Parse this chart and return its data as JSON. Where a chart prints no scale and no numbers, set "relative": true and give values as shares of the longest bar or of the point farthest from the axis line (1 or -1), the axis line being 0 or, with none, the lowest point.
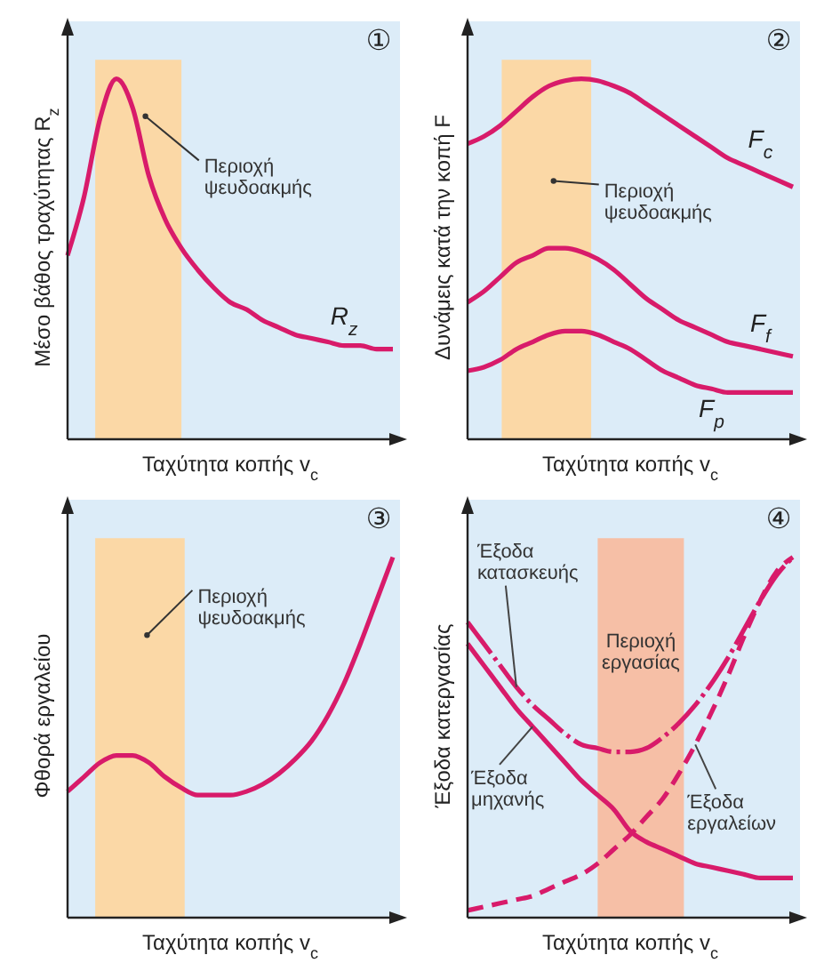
{
  "chart_data": [
    {
      "type": "line",
      "relative": true,
      "categories": [
        null,
        null,
        null,
        null,
        null,
        null,
        null,
        null,
        null,
        null,
        null,
        null,
        null,
        null,
        null,
        null,
        null,
        null,
        null,
        null,
        null
      ],
      "xlabel": "Ταχύτητα κοπής v$_{c}$",
      "ylabel": "Μέσο βάθος τραχύτητας R$_{z}$",
      "annotations": [
        "①",
        "Περιοχή ψευδοακμής"
      ],
      "series": [
        {
          "name": "R$_{z}$",
          "color": "#d81b6a",
          "values": [
            0.51,
            0.67,
            0.89,
            1.0,
            0.92,
            0.73,
            0.61,
            0.53,
            0.47,
            0.42,
            0.38,
            0.36,
            0.33,
            0.31,
            0.29,
            0.28,
            0.27,
            0.26,
            0.26,
            0.25,
            0.25
          ]
        }
      ]
    },
    {
      "type": "line",
      "relative": true,
      "categories": [
        null,
        null,
        null,
        null,
        null,
        null,
        null,
        null,
        null,
        null,
        null,
        null,
        null,
        null,
        null,
        null,
        null,
        null,
        null,
        null,
        null
      ],
      "xlabel": "Ταχύτητα κοπής v$_{c}$",
      "ylabel": "Δυνάμεις κατά την κοπή F",
      "annotations": [
        "②",
        "Περιοχή ψευδοακμής"
      ],
      "series": [
        {
          "name": "F$_{c}$",
          "color": "#d81b6a",
          "values": [
            0.82,
            0.84,
            0.87,
            0.91,
            0.95,
            0.98,
            0.995,
            1.0,
            0.995,
            0.98,
            0.96,
            0.93,
            0.9,
            0.87,
            0.84,
            0.81,
            0.78,
            0.76,
            0.74,
            0.72,
            0.7
          ]
        },
        {
          "name": "F$_{f}$",
          "color": "#d81b6a",
          "values": [
            0.38,
            0.41,
            0.45,
            0.49,
            0.51,
            0.53,
            0.53,
            0.52,
            0.5,
            0.47,
            0.43,
            0.39,
            0.36,
            0.33,
            0.31,
            0.29,
            0.27,
            0.26,
            0.25,
            0.24,
            0.23
          ]
        },
        {
          "name": "F$_{p}$",
          "color": "#d81b6a",
          "values": [
            0.19,
            0.2,
            0.22,
            0.25,
            0.27,
            0.29,
            0.3,
            0.3,
            0.29,
            0.27,
            0.25,
            0.22,
            0.19,
            0.17,
            0.15,
            0.14,
            0.13,
            0.13,
            0.13,
            0.13,
            0.13
          ]
        }
      ]
    },
    {
      "type": "line",
      "relative": true,
      "categories": [
        null,
        null,
        null,
        null,
        null,
        null,
        null,
        null,
        null,
        null,
        null,
        null,
        null,
        null,
        null,
        null,
        null,
        null,
        null,
        null,
        null
      ],
      "xlabel": "Ταχύτητα κοπής v$_{c}$",
      "ylabel": "Φθορά εργαλείου",
      "annotations": [
        "③",
        "Περιοχή ψευδοακμής"
      ],
      "series": [
        {
          "color": "#d81b6a",
          "values": [
            0.35,
            0.39,
            0.43,
            0.45,
            0.45,
            0.43,
            0.39,
            0.36,
            0.34,
            0.34,
            0.34,
            0.35,
            0.37,
            0.4,
            0.44,
            0.49,
            0.56,
            0.65,
            0.76,
            0.88,
            1.0
          ]
        }
      ]
    },
    {
      "type": "line",
      "relative": true,
      "categories": [
        null,
        null,
        null,
        null,
        null,
        null,
        null,
        null,
        null,
        null,
        null,
        null,
        null,
        null,
        null,
        null,
        null,
        null,
        null,
        null,
        null
      ],
      "xlabel": "Ταχύτητα κοπής v$_{c}$",
      "ylabel": "Έξοδα κατεργασίας",
      "annotations": [
        "④",
        "Περιοχή εργασίας"
      ],
      "series": [
        {
          "name": "Έξοδα κατασκευής",
          "color": "#d81b6a",
          "line_style": "dashdot",
          "values": [
            0.82,
            0.76,
            0.7,
            0.64,
            0.59,
            0.55,
            0.51,
            0.48,
            0.47,
            0.46,
            0.46,
            0.47,
            0.5,
            0.54,
            0.59,
            0.65,
            0.72,
            0.8,
            0.88,
            0.95,
            1.0
          ]
        },
        {
          "name": "Έξοδα μηχανής",
          "color": "#d81b6a",
          "line_style": "solid",
          "values": [
            0.76,
            0.7,
            0.64,
            0.58,
            0.53,
            0.48,
            0.43,
            0.38,
            0.34,
            0.3,
            0.24,
            0.21,
            0.19,
            0.17,
            0.15,
            0.14,
            0.13,
            0.12,
            0.11,
            0.11,
            0.11
          ]
        },
        {
          "name": "Έξοδα εργαλείων",
          "color": "#d81b6a",
          "line_style": "dashed",
          "values": [
            0.02,
            0.03,
            0.04,
            0.05,
            0.06,
            0.08,
            0.1,
            0.12,
            0.15,
            0.19,
            0.23,
            0.28,
            0.33,
            0.4,
            0.48,
            0.57,
            0.67,
            0.78,
            0.88,
            0.96,
            1.0
          ]
        }
      ]
    }
  ]
}
